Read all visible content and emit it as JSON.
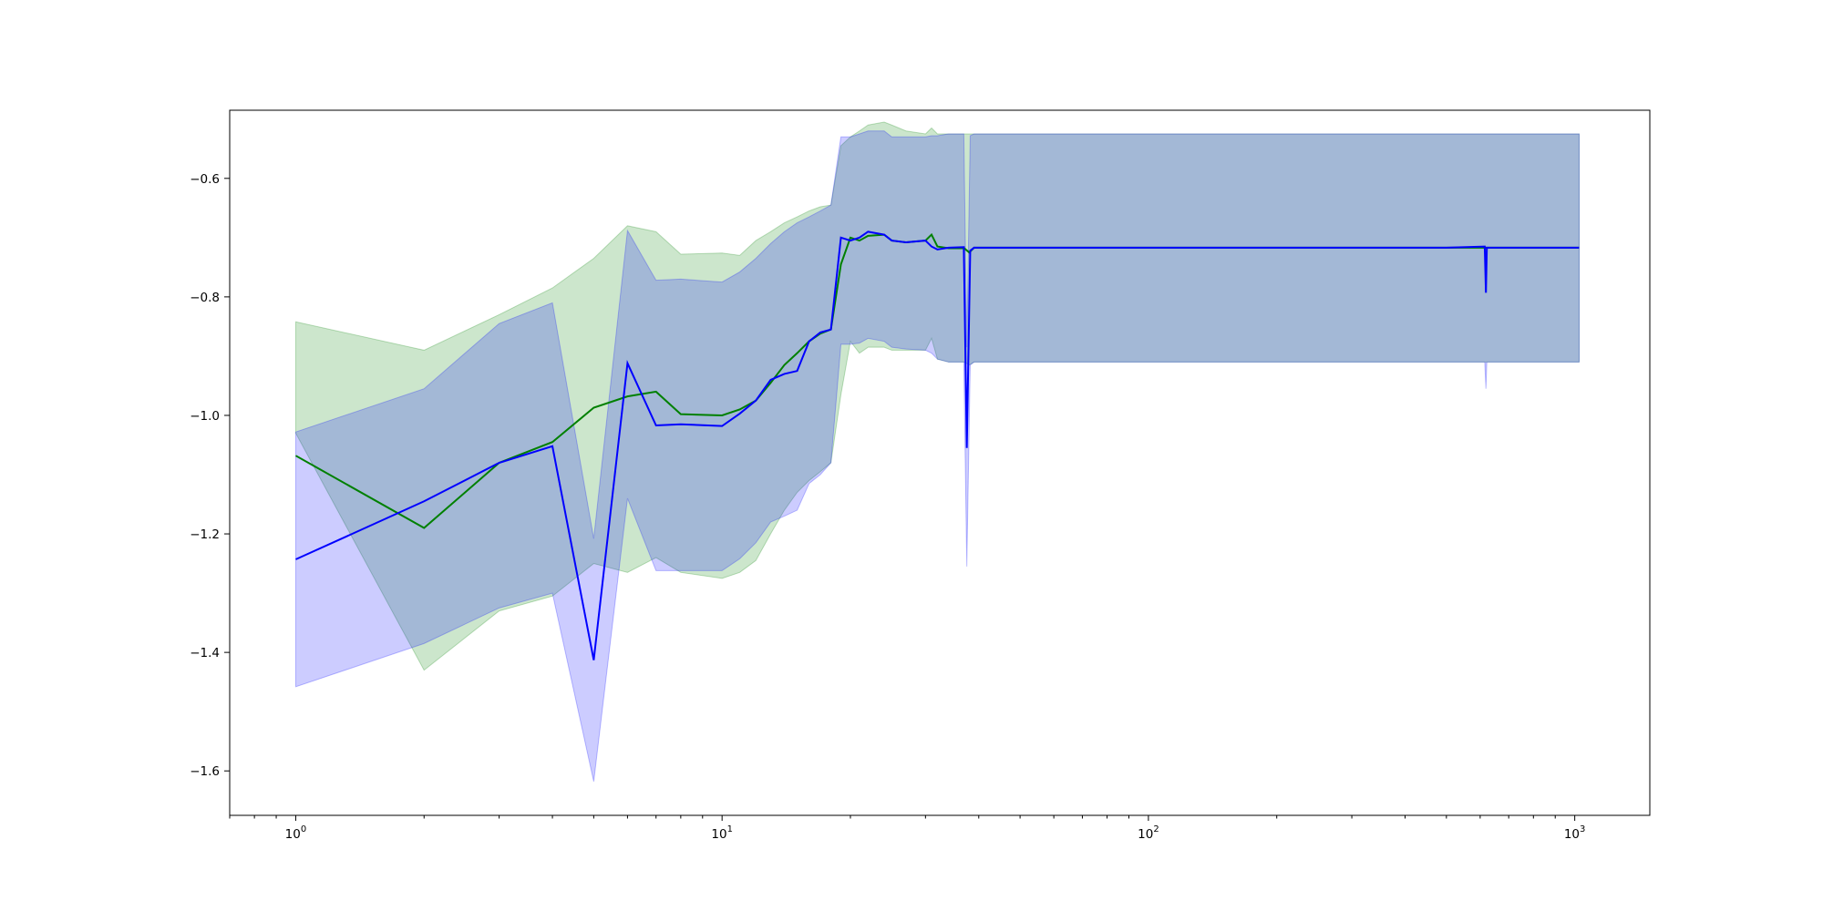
{
  "chart_data": {
    "type": "line",
    "title": "",
    "xlabel": "",
    "ylabel": "",
    "xscale": "log",
    "xlim": [
      0.7,
      1500
    ],
    "ylim": [
      -1.675,
      -0.485
    ],
    "grid": false,
    "legend": "none",
    "x_ticks": [
      {
        "value": 1,
        "base": "10",
        "exp": "0"
      },
      {
        "value": 10,
        "base": "10",
        "exp": "1"
      },
      {
        "value": 100,
        "base": "10",
        "exp": "2"
      },
      {
        "value": 1000,
        "base": "10",
        "exp": "3"
      }
    ],
    "y_ticks": [
      {
        "value": -1.6,
        "label": "−1.6"
      },
      {
        "value": -1.4,
        "label": "−1.4"
      },
      {
        "value": -1.2,
        "label": "−1.2"
      },
      {
        "value": -1.0,
        "label": "−1.0"
      },
      {
        "value": -0.8,
        "label": "−0.8"
      },
      {
        "value": -0.6,
        "label": "−0.6"
      }
    ],
    "series": [
      {
        "color": "#008000",
        "band_color": "#008000",
        "band_opacity": 0.2,
        "x": [
          1,
          2,
          3,
          4,
          5,
          6,
          7,
          8,
          10,
          11,
          12,
          13,
          14,
          15,
          16,
          17,
          18,
          19,
          20,
          21,
          22,
          24,
          25,
          27,
          30,
          31,
          32,
          34,
          37,
          38,
          39,
          40,
          50,
          100,
          200,
          500,
          1024
        ],
        "mean": [
          -1.068,
          -1.19,
          -1.08,
          -1.045,
          -0.987,
          -0.968,
          -0.96,
          -0.998,
          -1.0,
          -0.99,
          -0.975,
          -0.945,
          -0.915,
          -0.895,
          -0.875,
          -0.862,
          -0.855,
          -0.745,
          -0.7,
          -0.705,
          -0.697,
          -0.695,
          -0.705,
          -0.708,
          -0.705,
          -0.695,
          -0.715,
          -0.718,
          -0.718,
          -0.725,
          -0.717,
          -0.717,
          -0.717,
          -0.717,
          -0.717,
          -0.717,
          -0.717
        ],
        "upper": [
          -0.842,
          -0.89,
          -0.83,
          -0.785,
          -0.735,
          -0.68,
          -0.69,
          -0.728,
          -0.726,
          -0.73,
          -0.705,
          -0.69,
          -0.675,
          -0.665,
          -0.655,
          -0.648,
          -0.645,
          -0.545,
          -0.53,
          -0.52,
          -0.51,
          -0.505,
          -0.51,
          -0.52,
          -0.525,
          -0.515,
          -0.525,
          -0.525,
          -0.525,
          -0.525,
          -0.525,
          -0.525,
          -0.525,
          -0.525,
          -0.525,
          -0.525,
          -0.525
        ],
        "lower": [
          -1.03,
          -1.43,
          -1.33,
          -1.305,
          -1.25,
          -1.265,
          -1.24,
          -1.265,
          -1.275,
          -1.265,
          -1.245,
          -1.2,
          -1.16,
          -1.13,
          -1.11,
          -1.095,
          -1.08,
          -0.965,
          -0.875,
          -0.895,
          -0.885,
          -0.885,
          -0.89,
          -0.89,
          -0.89,
          -0.87,
          -0.905,
          -0.91,
          -0.91,
          -0.915,
          -0.91,
          -0.91,
          -0.91,
          -0.91,
          -0.91,
          -0.91,
          -0.91
        ]
      },
      {
        "color": "#0000ff",
        "band_color": "#0000ff",
        "band_opacity": 0.2,
        "x": [
          1,
          2,
          3,
          4,
          5,
          6,
          7,
          8,
          10,
          11,
          12,
          13,
          14,
          15,
          16,
          17,
          18,
          19,
          20,
          21,
          22,
          24,
          25,
          27,
          30,
          31,
          32,
          34,
          36.9,
          37.5,
          38.2,
          39,
          50,
          100,
          200,
          500,
          615,
          619,
          622,
          700,
          800,
          1024
        ],
        "mean": [
          -1.243,
          -1.145,
          -1.08,
          -1.052,
          -1.413,
          -0.912,
          -1.017,
          -1.015,
          -1.018,
          -0.997,
          -0.975,
          -0.94,
          -0.93,
          -0.925,
          -0.875,
          -0.86,
          -0.855,
          -0.7,
          -0.705,
          -0.7,
          -0.69,
          -0.695,
          -0.705,
          -0.708,
          -0.705,
          -0.715,
          -0.72,
          -0.717,
          -0.716,
          -1.055,
          -0.722,
          -0.717,
          -0.717,
          -0.717,
          -0.717,
          -0.717,
          -0.715,
          -0.793,
          -0.717,
          -0.717,
          -0.717,
          -0.717
        ],
        "upper": [
          -1.028,
          -0.955,
          -0.845,
          -0.81,
          -1.208,
          -0.688,
          -0.772,
          -0.77,
          -0.775,
          -0.758,
          -0.735,
          -0.71,
          -0.69,
          -0.675,
          -0.665,
          -0.655,
          -0.645,
          -0.53,
          -0.53,
          -0.525,
          -0.52,
          -0.52,
          -0.53,
          -0.53,
          -0.53,
          -0.528,
          -0.528,
          -0.525,
          -0.525,
          -0.885,
          -0.528,
          -0.525,
          -0.525,
          -0.525,
          -0.525,
          -0.525,
          -0.525,
          -0.525,
          -0.525,
          -0.525,
          -0.525,
          -0.525
        ],
        "lower": [
          -1.458,
          -1.385,
          -1.325,
          -1.3,
          -1.618,
          -1.14,
          -1.262,
          -1.262,
          -1.262,
          -1.242,
          -1.215,
          -1.18,
          -1.17,
          -1.16,
          -1.115,
          -1.1,
          -1.08,
          -0.88,
          -0.88,
          -0.878,
          -0.87,
          -0.875,
          -0.885,
          -0.888,
          -0.89,
          -0.895,
          -0.905,
          -0.91,
          -0.91,
          -1.255,
          -0.915,
          -0.91,
          -0.91,
          -0.91,
          -0.91,
          -0.91,
          -0.91,
          -0.955,
          -0.91,
          -0.91,
          -0.91,
          -0.91
        ]
      }
    ]
  }
}
